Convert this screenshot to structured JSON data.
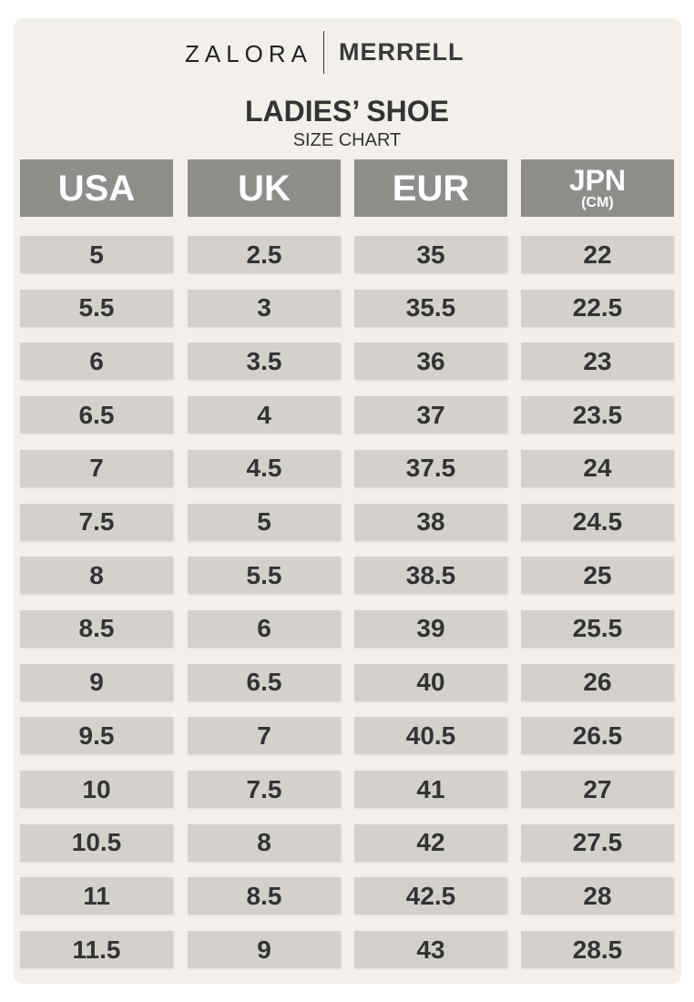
{
  "brands": {
    "left": "ZALORA",
    "right": "MERRELL"
  },
  "title": "LADIES’ SHOE",
  "subtitle": "SIZE CHART",
  "colors": {
    "background": "#f3f0eb",
    "header": "#8f8d8a",
    "cell": "#d4d0cb",
    "text": "#333333"
  },
  "chart_data": {
    "type": "table",
    "title": "LADIES’ SHOE",
    "subtitle": "SIZE CHART",
    "columns": [
      {
        "label": "USA",
        "sub": ""
      },
      {
        "label": "UK",
        "sub": ""
      },
      {
        "label": "EUR",
        "sub": ""
      },
      {
        "label": "JPN",
        "sub": "(CM)"
      }
    ],
    "rows": [
      [
        "5",
        "2.5",
        "35",
        "22"
      ],
      [
        "5.5",
        "3",
        "35.5",
        "22.5"
      ],
      [
        "6",
        "3.5",
        "36",
        "23"
      ],
      [
        "6.5",
        "4",
        "37",
        "23.5"
      ],
      [
        "7",
        "4.5",
        "37.5",
        "24"
      ],
      [
        "7.5",
        "5",
        "38",
        "24.5"
      ],
      [
        "8",
        "5.5",
        "38.5",
        "25"
      ],
      [
        "8.5",
        "6",
        "39",
        "25.5"
      ],
      [
        "9",
        "6.5",
        "40",
        "26"
      ],
      [
        "9.5",
        "7",
        "40.5",
        "26.5"
      ],
      [
        "10",
        "7.5",
        "41",
        "27"
      ],
      [
        "10.5",
        "8",
        "42",
        "27.5"
      ],
      [
        "11",
        "8.5",
        "42.5",
        "28"
      ],
      [
        "11.5",
        "9",
        "43",
        "28.5"
      ]
    ]
  }
}
